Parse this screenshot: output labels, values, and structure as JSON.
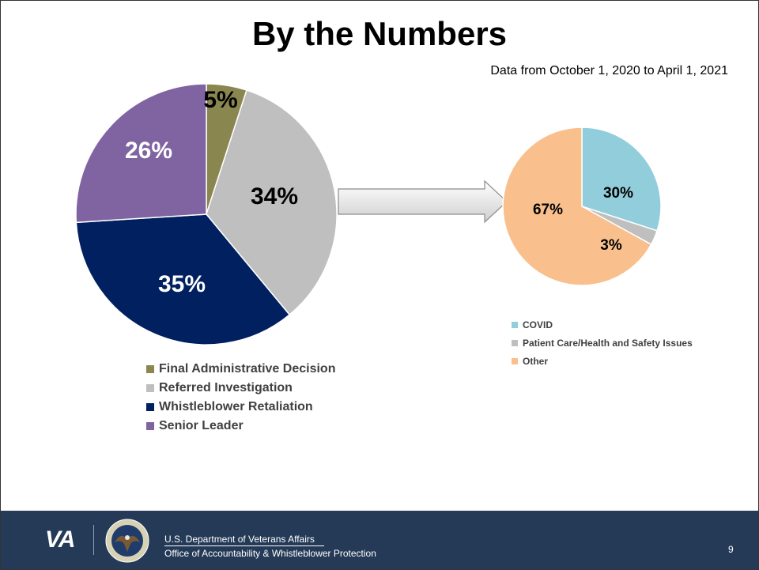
{
  "title": "By the Numbers",
  "subtitle": "Data from October 1, 2020 to April 1, 2021",
  "chart_data": [
    {
      "type": "pie",
      "categories": [
        "Final Administrative Decision",
        "Referred Investigation",
        "Whistleblower Retaliation",
        "Senior Leader"
      ],
      "values": [
        5,
        34,
        35,
        26
      ],
      "labels": [
        "5%",
        "34%",
        "35%",
        "26%"
      ],
      "colors": [
        "#8a8650",
        "#bfbfbf",
        "#002060",
        "#8064a2"
      ],
      "label_colors": [
        "#000000",
        "#000000",
        "#ffffff",
        "#ffffff"
      ],
      "legend": "bottom"
    },
    {
      "type": "pie",
      "categories": [
        "COVID",
        "Patient Care/Health and Safety Issues",
        "Other"
      ],
      "values": [
        30,
        3,
        67
      ],
      "labels": [
        "30%",
        "3%",
        "67%"
      ],
      "colors": [
        "#92cddc",
        "#bfbfbf",
        "#f9c08d"
      ],
      "label_colors": [
        "#000000",
        "#000000",
        "#000000"
      ],
      "legend": "bottom"
    }
  ],
  "footer": {
    "logo_text": "VA",
    "department": "U.S. Department of Veterans Affairs",
    "office": "Office of Accountability & Whistleblower Protection",
    "page_number": "9"
  }
}
